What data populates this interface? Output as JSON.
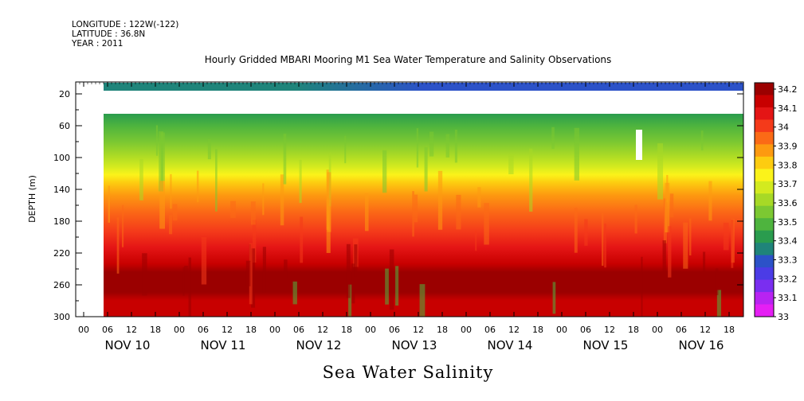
{
  "header": {
    "longitude": "LONGITUDE : 122W(-122)",
    "latitude": "LATITUDE : 36.8N",
    "year": "YEAR : 2011"
  },
  "chart_data": {
    "type": "heatmap",
    "title": "Hourly Gridded MBARI Mooring M1 Sea Water Temperature and Salinity Observations",
    "xlabel": "Sea Water Salinity",
    "ylabel": "DEPTH (m)",
    "y_range_m": [
      300,
      5
    ],
    "y_ticks": [
      20,
      60,
      100,
      140,
      180,
      220,
      260,
      300
    ],
    "x_hour_ticks": [
      "00",
      "06",
      "12",
      "18",
      "00",
      "06",
      "12",
      "18",
      "00",
      "06",
      "12",
      "18",
      "00",
      "06",
      "12",
      "18",
      "00",
      "06",
      "12",
      "18",
      "00",
      "06",
      "12",
      "18",
      "00",
      "06",
      "12",
      "18"
    ],
    "x_day_labels": [
      "NOV 10",
      "NOV 11",
      "NOV 12",
      "NOV 13",
      "NOV 14",
      "NOV 15",
      "NOV 16"
    ],
    "colorbar_levels": [
      34.2,
      34.1,
      34,
      33.9,
      33.8,
      33.7,
      33.6,
      33.5,
      33.4,
      33.3,
      33.2,
      33.1,
      33
    ],
    "colorbar_colors": [
      "#9b0000",
      "#c80000",
      "#e41515",
      "#f43a1a",
      "#fb6a16",
      "#fd9a10",
      "#fdcc10",
      "#fbf31a",
      "#d3ea1f",
      "#a7d926",
      "#7cc832",
      "#4eb43e",
      "#2a9c4e",
      "#1f847a",
      "#2c52c8",
      "#4b3ce6",
      "#7a2ef0",
      "#b823f2",
      "#e51ff4"
    ],
    "depth_profile_psu": [
      {
        "depth_m": 10,
        "value": 33.3
      },
      {
        "depth_m": 40,
        "value": 33.45
      },
      {
        "depth_m": 60,
        "value": 33.55
      },
      {
        "depth_m": 100,
        "value": 33.7
      },
      {
        "depth_m": 120,
        "value": 33.85
      },
      {
        "depth_m": 140,
        "value": 33.9
      },
      {
        "depth_m": 180,
        "value": 34.0
      },
      {
        "depth_m": 220,
        "value": 34.1
      },
      {
        "depth_m": 260,
        "value": 34.2
      },
      {
        "depth_m": 300,
        "value": 34.1
      }
    ]
  }
}
